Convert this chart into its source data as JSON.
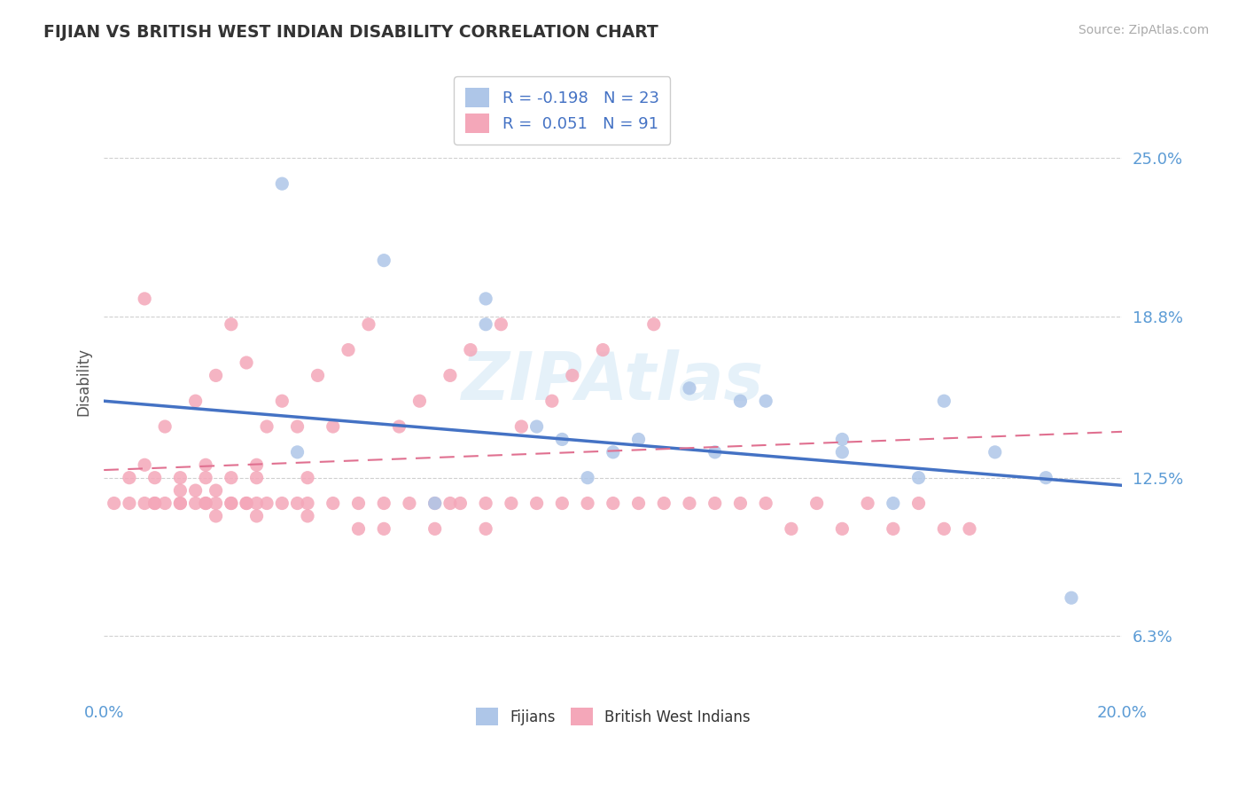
{
  "title": "FIJIAN VS BRITISH WEST INDIAN DISABILITY CORRELATION CHART",
  "source": "Source: ZipAtlas.com",
  "ylabel": "Disability",
  "xlim": [
    0.0,
    0.2
  ],
  "ylim": [
    0.04,
    0.285
  ],
  "yticks": [
    0.063,
    0.125,
    0.188,
    0.25
  ],
  "ytick_labels": [
    "6.3%",
    "12.5%",
    "18.8%",
    "25.0%"
  ],
  "xticks": [
    0.0,
    0.2
  ],
  "xtick_labels": [
    "0.0%",
    "20.0%"
  ],
  "grid_color": "#d0d0d0",
  "background_color": "#ffffff",
  "fijian_color": "#aec6e8",
  "bwi_color": "#f4a7b9",
  "fijian_line_color": "#4472c4",
  "bwi_line_color": "#e07090",
  "fijian_R": -0.198,
  "fijian_N": 23,
  "bwi_R": 0.051,
  "bwi_N": 91,
  "fijian_trend_start_y": 0.155,
  "fijian_trend_end_y": 0.122,
  "bwi_trend_start_y": 0.128,
  "bwi_trend_end_y": 0.143,
  "watermark": "ZIPAtlas",
  "fijian_label": "Fijians",
  "bwi_label": "British West Indians",
  "fijian_points_x": [
    0.035,
    0.038,
    0.055,
    0.065,
    0.075,
    0.075,
    0.085,
    0.09,
    0.095,
    0.1,
    0.105,
    0.115,
    0.12,
    0.125,
    0.13,
    0.145,
    0.145,
    0.155,
    0.16,
    0.165,
    0.175,
    0.185,
    0.19
  ],
  "fijian_points_y": [
    0.24,
    0.135,
    0.21,
    0.115,
    0.185,
    0.195,
    0.145,
    0.14,
    0.125,
    0.135,
    0.14,
    0.16,
    0.135,
    0.155,
    0.155,
    0.14,
    0.135,
    0.115,
    0.125,
    0.155,
    0.135,
    0.125,
    0.078
  ],
  "bwi_points_x": [
    0.005,
    0.008,
    0.008,
    0.01,
    0.01,
    0.012,
    0.015,
    0.015,
    0.015,
    0.018,
    0.018,
    0.02,
    0.02,
    0.02,
    0.022,
    0.022,
    0.022,
    0.025,
    0.025,
    0.025,
    0.028,
    0.028,
    0.03,
    0.03,
    0.03,
    0.03,
    0.032,
    0.032,
    0.035,
    0.035,
    0.038,
    0.038,
    0.04,
    0.04,
    0.04,
    0.042,
    0.045,
    0.045,
    0.048,
    0.05,
    0.05,
    0.052,
    0.055,
    0.055,
    0.058,
    0.06,
    0.062,
    0.065,
    0.065,
    0.068,
    0.068,
    0.07,
    0.072,
    0.075,
    0.075,
    0.078,
    0.08,
    0.082,
    0.085,
    0.088,
    0.09,
    0.092,
    0.095,
    0.098,
    0.1,
    0.105,
    0.108,
    0.11,
    0.115,
    0.12,
    0.125,
    0.13,
    0.135,
    0.14,
    0.145,
    0.15,
    0.155,
    0.16,
    0.165,
    0.17,
    0.002,
    0.005,
    0.008,
    0.01,
    0.012,
    0.015,
    0.018,
    0.02,
    0.022,
    0.025,
    0.028
  ],
  "bwi_points_y": [
    0.125,
    0.195,
    0.13,
    0.115,
    0.125,
    0.145,
    0.12,
    0.115,
    0.125,
    0.155,
    0.12,
    0.125,
    0.115,
    0.13,
    0.165,
    0.12,
    0.11,
    0.185,
    0.125,
    0.115,
    0.17,
    0.115,
    0.125,
    0.115,
    0.13,
    0.11,
    0.145,
    0.115,
    0.155,
    0.115,
    0.145,
    0.115,
    0.125,
    0.115,
    0.11,
    0.165,
    0.145,
    0.115,
    0.175,
    0.115,
    0.105,
    0.185,
    0.115,
    0.105,
    0.145,
    0.115,
    0.155,
    0.115,
    0.105,
    0.165,
    0.115,
    0.115,
    0.175,
    0.115,
    0.105,
    0.185,
    0.115,
    0.145,
    0.115,
    0.155,
    0.115,
    0.165,
    0.115,
    0.175,
    0.115,
    0.115,
    0.185,
    0.115,
    0.115,
    0.115,
    0.115,
    0.115,
    0.105,
    0.115,
    0.105,
    0.115,
    0.105,
    0.115,
    0.105,
    0.105,
    0.115,
    0.115,
    0.115,
    0.115,
    0.115,
    0.115,
    0.115,
    0.115,
    0.115,
    0.115,
    0.115
  ]
}
